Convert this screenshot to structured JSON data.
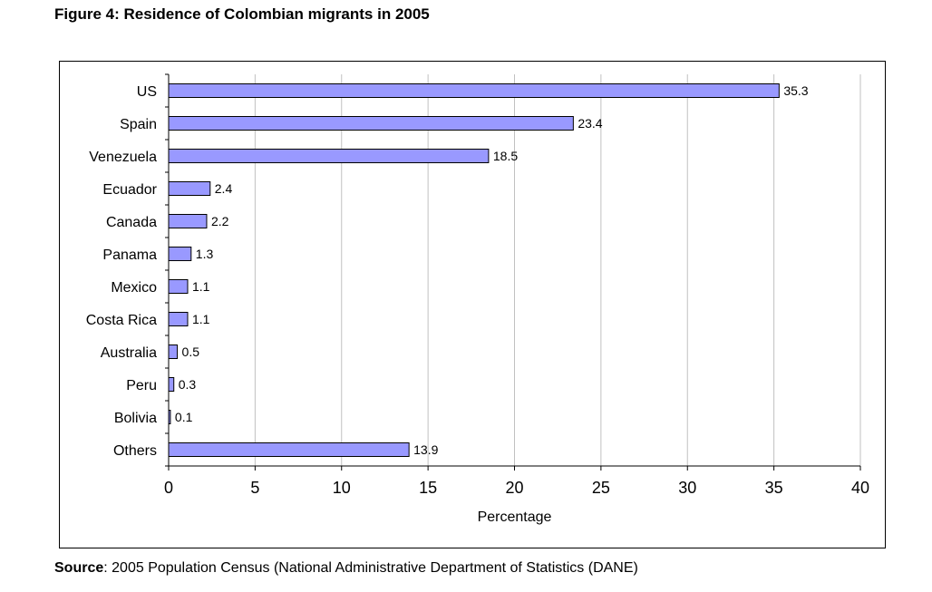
{
  "figure": {
    "title": "Figure 4: Residence of Colombian migrants in 2005"
  },
  "source": {
    "label": "Source",
    "separator": ":",
    "text": " 2005 Population Census (National Administrative Department of Statistics (DANE)"
  },
  "colors": {
    "bar_fill": "#9999ff",
    "bar_stroke": "#000000",
    "gridline": "#c0c0c0",
    "axis": "#000000"
  },
  "chart_data": {
    "type": "bar",
    "orientation": "horizontal",
    "title": "Figure 4: Residence of Colombian migrants in 2005",
    "xlabel": "Percentage",
    "ylabel": "",
    "categories": [
      "US",
      "Spain",
      "Venezuela",
      "Ecuador",
      "Canada",
      "Panama",
      "Mexico",
      "Costa Rica",
      "Australia",
      "Peru",
      "Bolivia",
      "Others"
    ],
    "values": [
      35.3,
      23.4,
      18.5,
      2.4,
      2.2,
      1.3,
      1.1,
      1.1,
      0.5,
      0.3,
      0.1,
      13.9
    ],
    "value_labels": [
      "35.3",
      "23.4",
      "18.5",
      "2.4",
      "2.2",
      "1.3",
      "1.1",
      "1.1",
      "0.5",
      "0.3",
      "0.1",
      "13.9"
    ],
    "xlim": [
      0,
      40
    ],
    "xticks": [
      0,
      5,
      10,
      15,
      20,
      25,
      30,
      35,
      40
    ],
    "xtick_labels": [
      "0",
      "5",
      "10",
      "15",
      "20",
      "25",
      "30",
      "35",
      "40"
    ],
    "grid": true,
    "legend": "none"
  }
}
